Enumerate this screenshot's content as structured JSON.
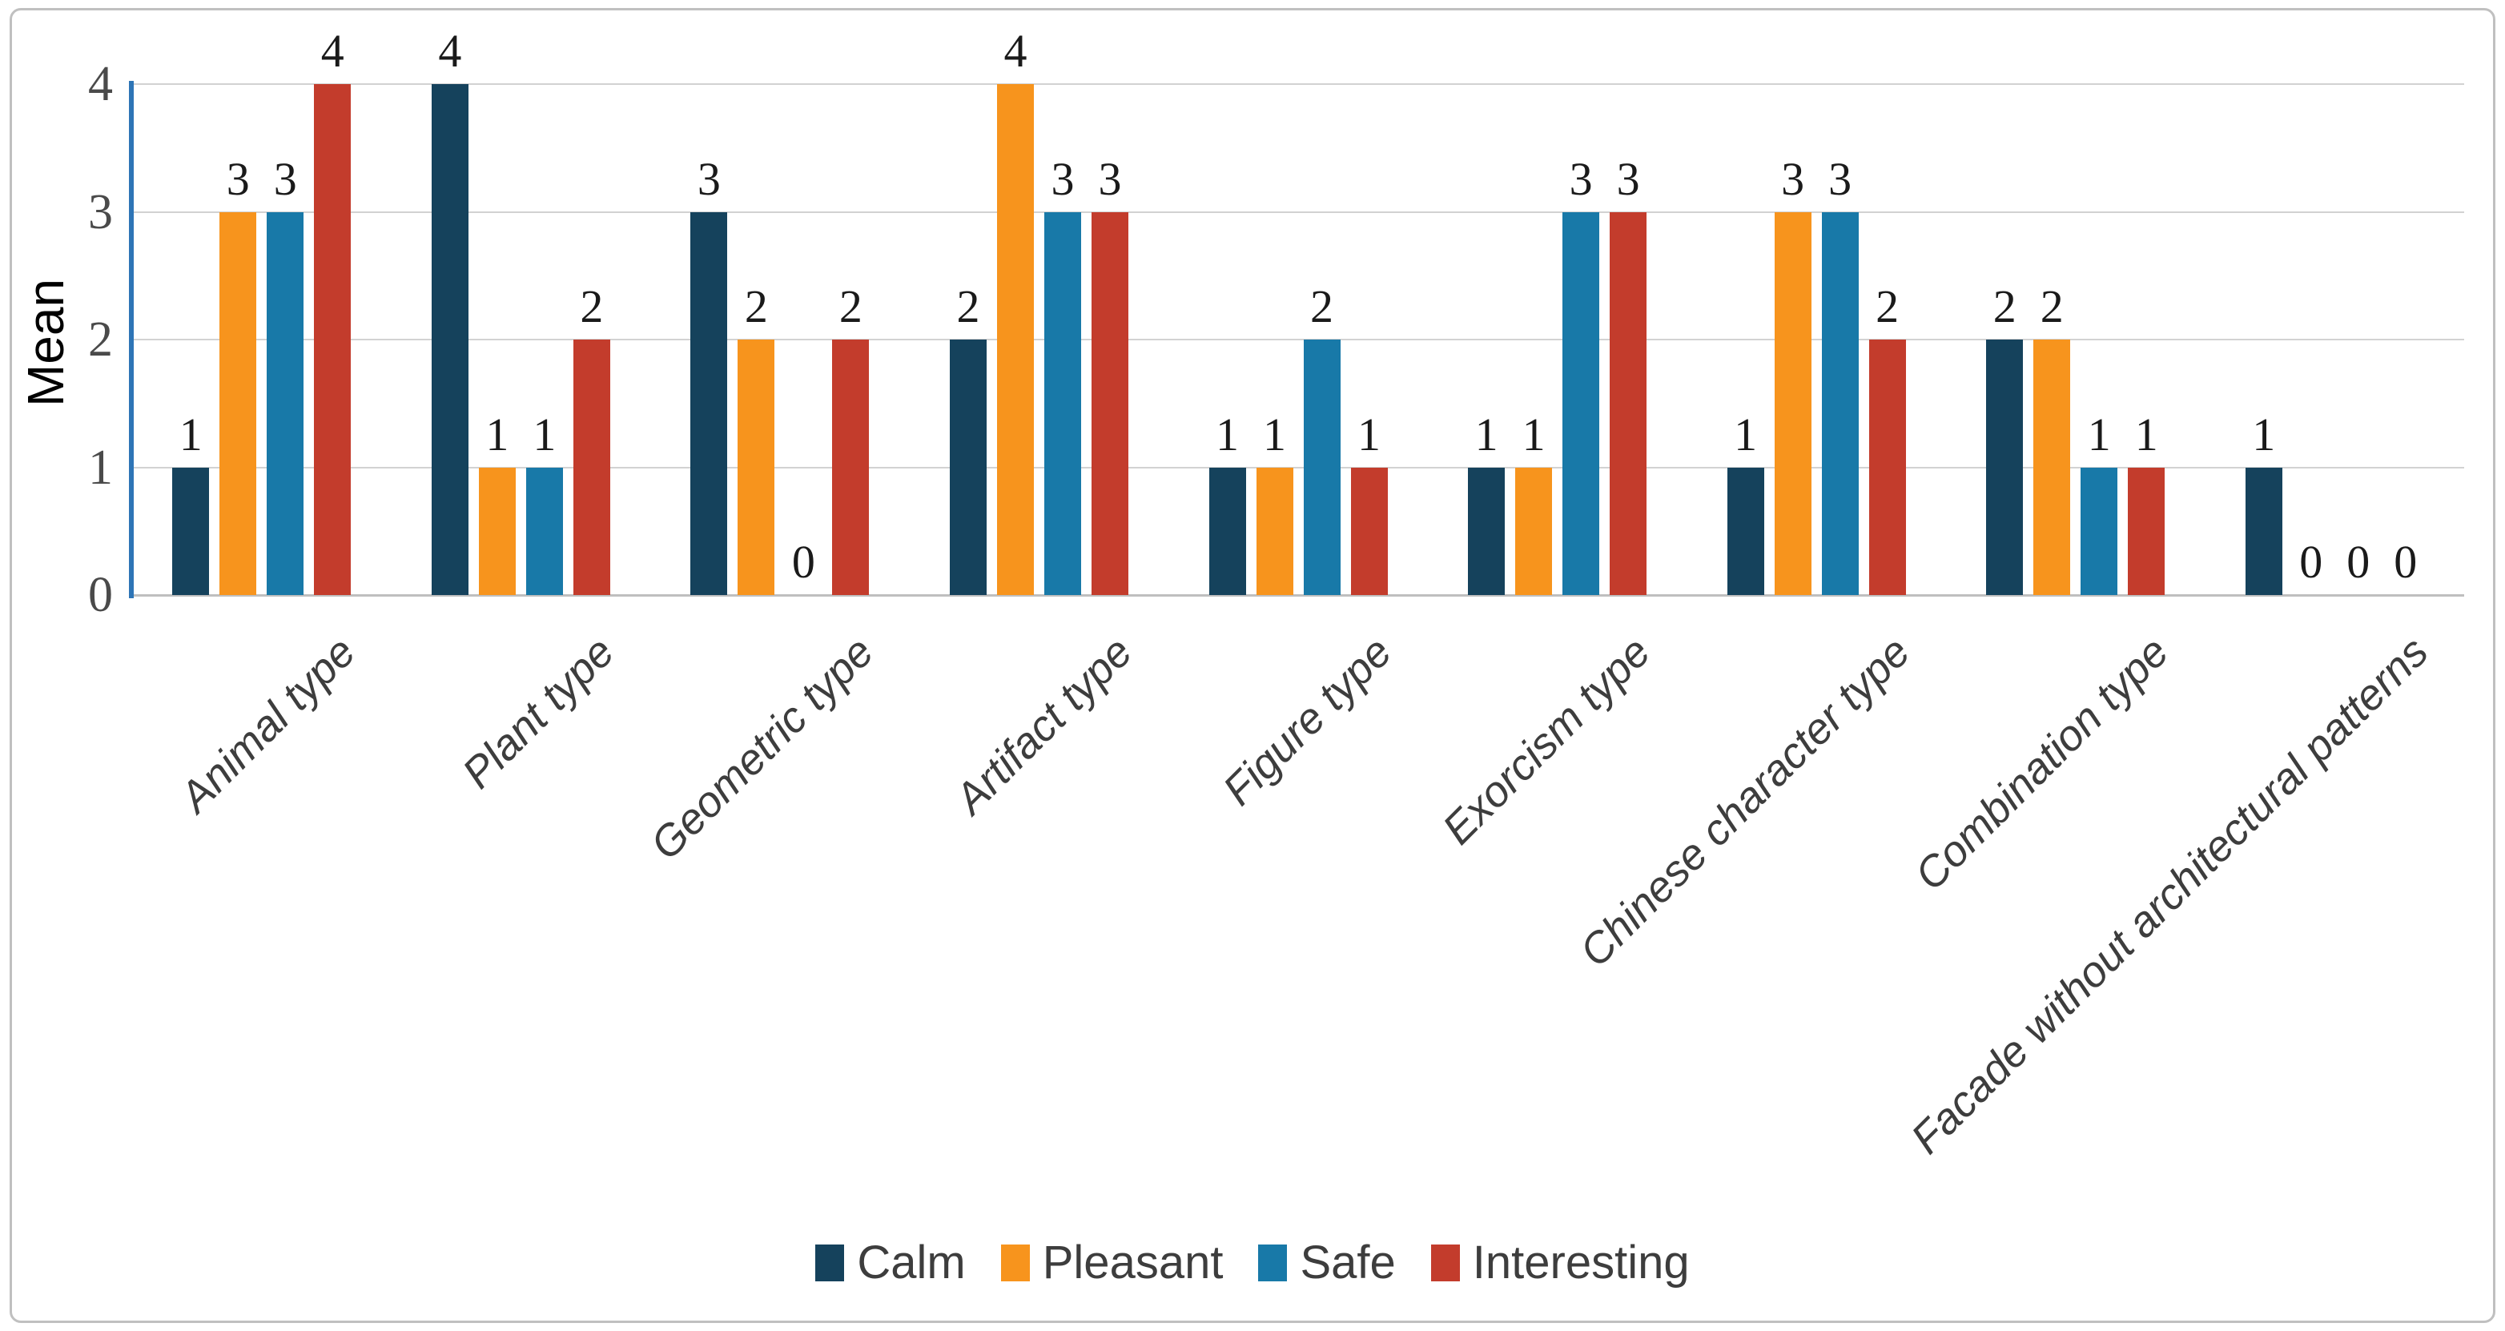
{
  "chart_data": {
    "type": "bar",
    "title": "",
    "ylabel": "Mean",
    "xlabel": "",
    "categories": [
      "Animal type",
      "Plant type",
      "Geometric type",
      "Artifact type",
      "Figure type",
      "Exorcism type",
      "Chinese character type",
      "Combination type",
      "Facade without architectural patterns"
    ],
    "series": [
      {
        "name": "Calm",
        "color": "#15425C",
        "values": [
          1,
          4,
          3,
          2,
          1,
          1,
          1,
          2,
          1
        ]
      },
      {
        "name": "Pleasant",
        "color": "#F7941D",
        "values": [
          3,
          1,
          2,
          4,
          1,
          1,
          3,
          2,
          0
        ]
      },
      {
        "name": "Safe",
        "color": "#1879A8",
        "values": [
          3,
          1,
          0,
          3,
          2,
          3,
          3,
          1,
          0
        ]
      },
      {
        "name": "Interesting",
        "color": "#C33C2C",
        "values": [
          4,
          2,
          2,
          3,
          1,
          3,
          2,
          1,
          0
        ]
      }
    ],
    "ylim": [
      0,
      4
    ],
    "yticks": [
      0,
      1,
      2,
      3,
      4
    ],
    "grid": true,
    "bar_value_labels": true,
    "legend_position": "bottom"
  },
  "colors": {
    "axis_line": "#2E75B6",
    "gridline": "#D2D2D2",
    "baseline": "#BFBFBF",
    "figure_border": "#C0C0C0",
    "tick_text": "#4A4A4A",
    "category_text": "#3D3D3D",
    "legend_text": "#3D3D3D",
    "value_label_text": "#1A1A1A"
  }
}
